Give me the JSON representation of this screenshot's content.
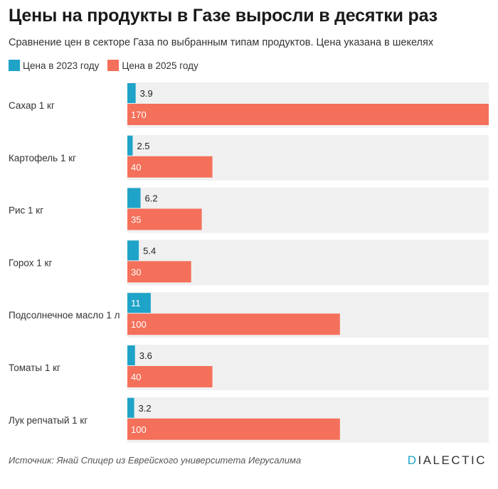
{
  "title": "Цены на продукты в Газе выросли в десятки раз",
  "subtitle": "Сравнение цен в секторе Газа по выбранным типам продуктов. Цена указана в шекелях",
  "source": "Источник: Янай Спицер из Еврейского университета Иерусалима",
  "logo": {
    "accent": "D",
    "rest": "IALECTIC"
  },
  "colors": {
    "series_2023": "#1fa3c8",
    "series_2025": "#f4705a",
    "row_bg": "#f0f0f0"
  },
  "chart_data": {
    "type": "bar",
    "orientation": "horizontal",
    "title": "Цены на продукты в Газе выросли в десятки раз",
    "categories": [
      "Сахар 1 кг",
      "Картофель 1 кг",
      "Рис 1 кг",
      "Горох 1 кг",
      "Подсолнечное масло 1 л",
      "Томаты 1 кг",
      "Лук репчатый 1 кг"
    ],
    "series": [
      {
        "name": "Цена в 2023 году",
        "values": [
          3.9,
          2.5,
          6.2,
          5.4,
          11,
          3.6,
          3.2
        ],
        "labels": [
          "3.9",
          "2.5",
          "6.2",
          "5.4",
          "11",
          "3.6",
          "3.2"
        ]
      },
      {
        "name": "Цена в 2025 году",
        "values": [
          170,
          40,
          35,
          30,
          100,
          40,
          100
        ],
        "labels": [
          "170",
          "40",
          "35",
          "30",
          "100",
          "40",
          "100"
        ]
      }
    ],
    "xlim": [
      0,
      170
    ],
    "xlabel": "",
    "ylabel": "",
    "grid": false,
    "legend": "top-left"
  }
}
